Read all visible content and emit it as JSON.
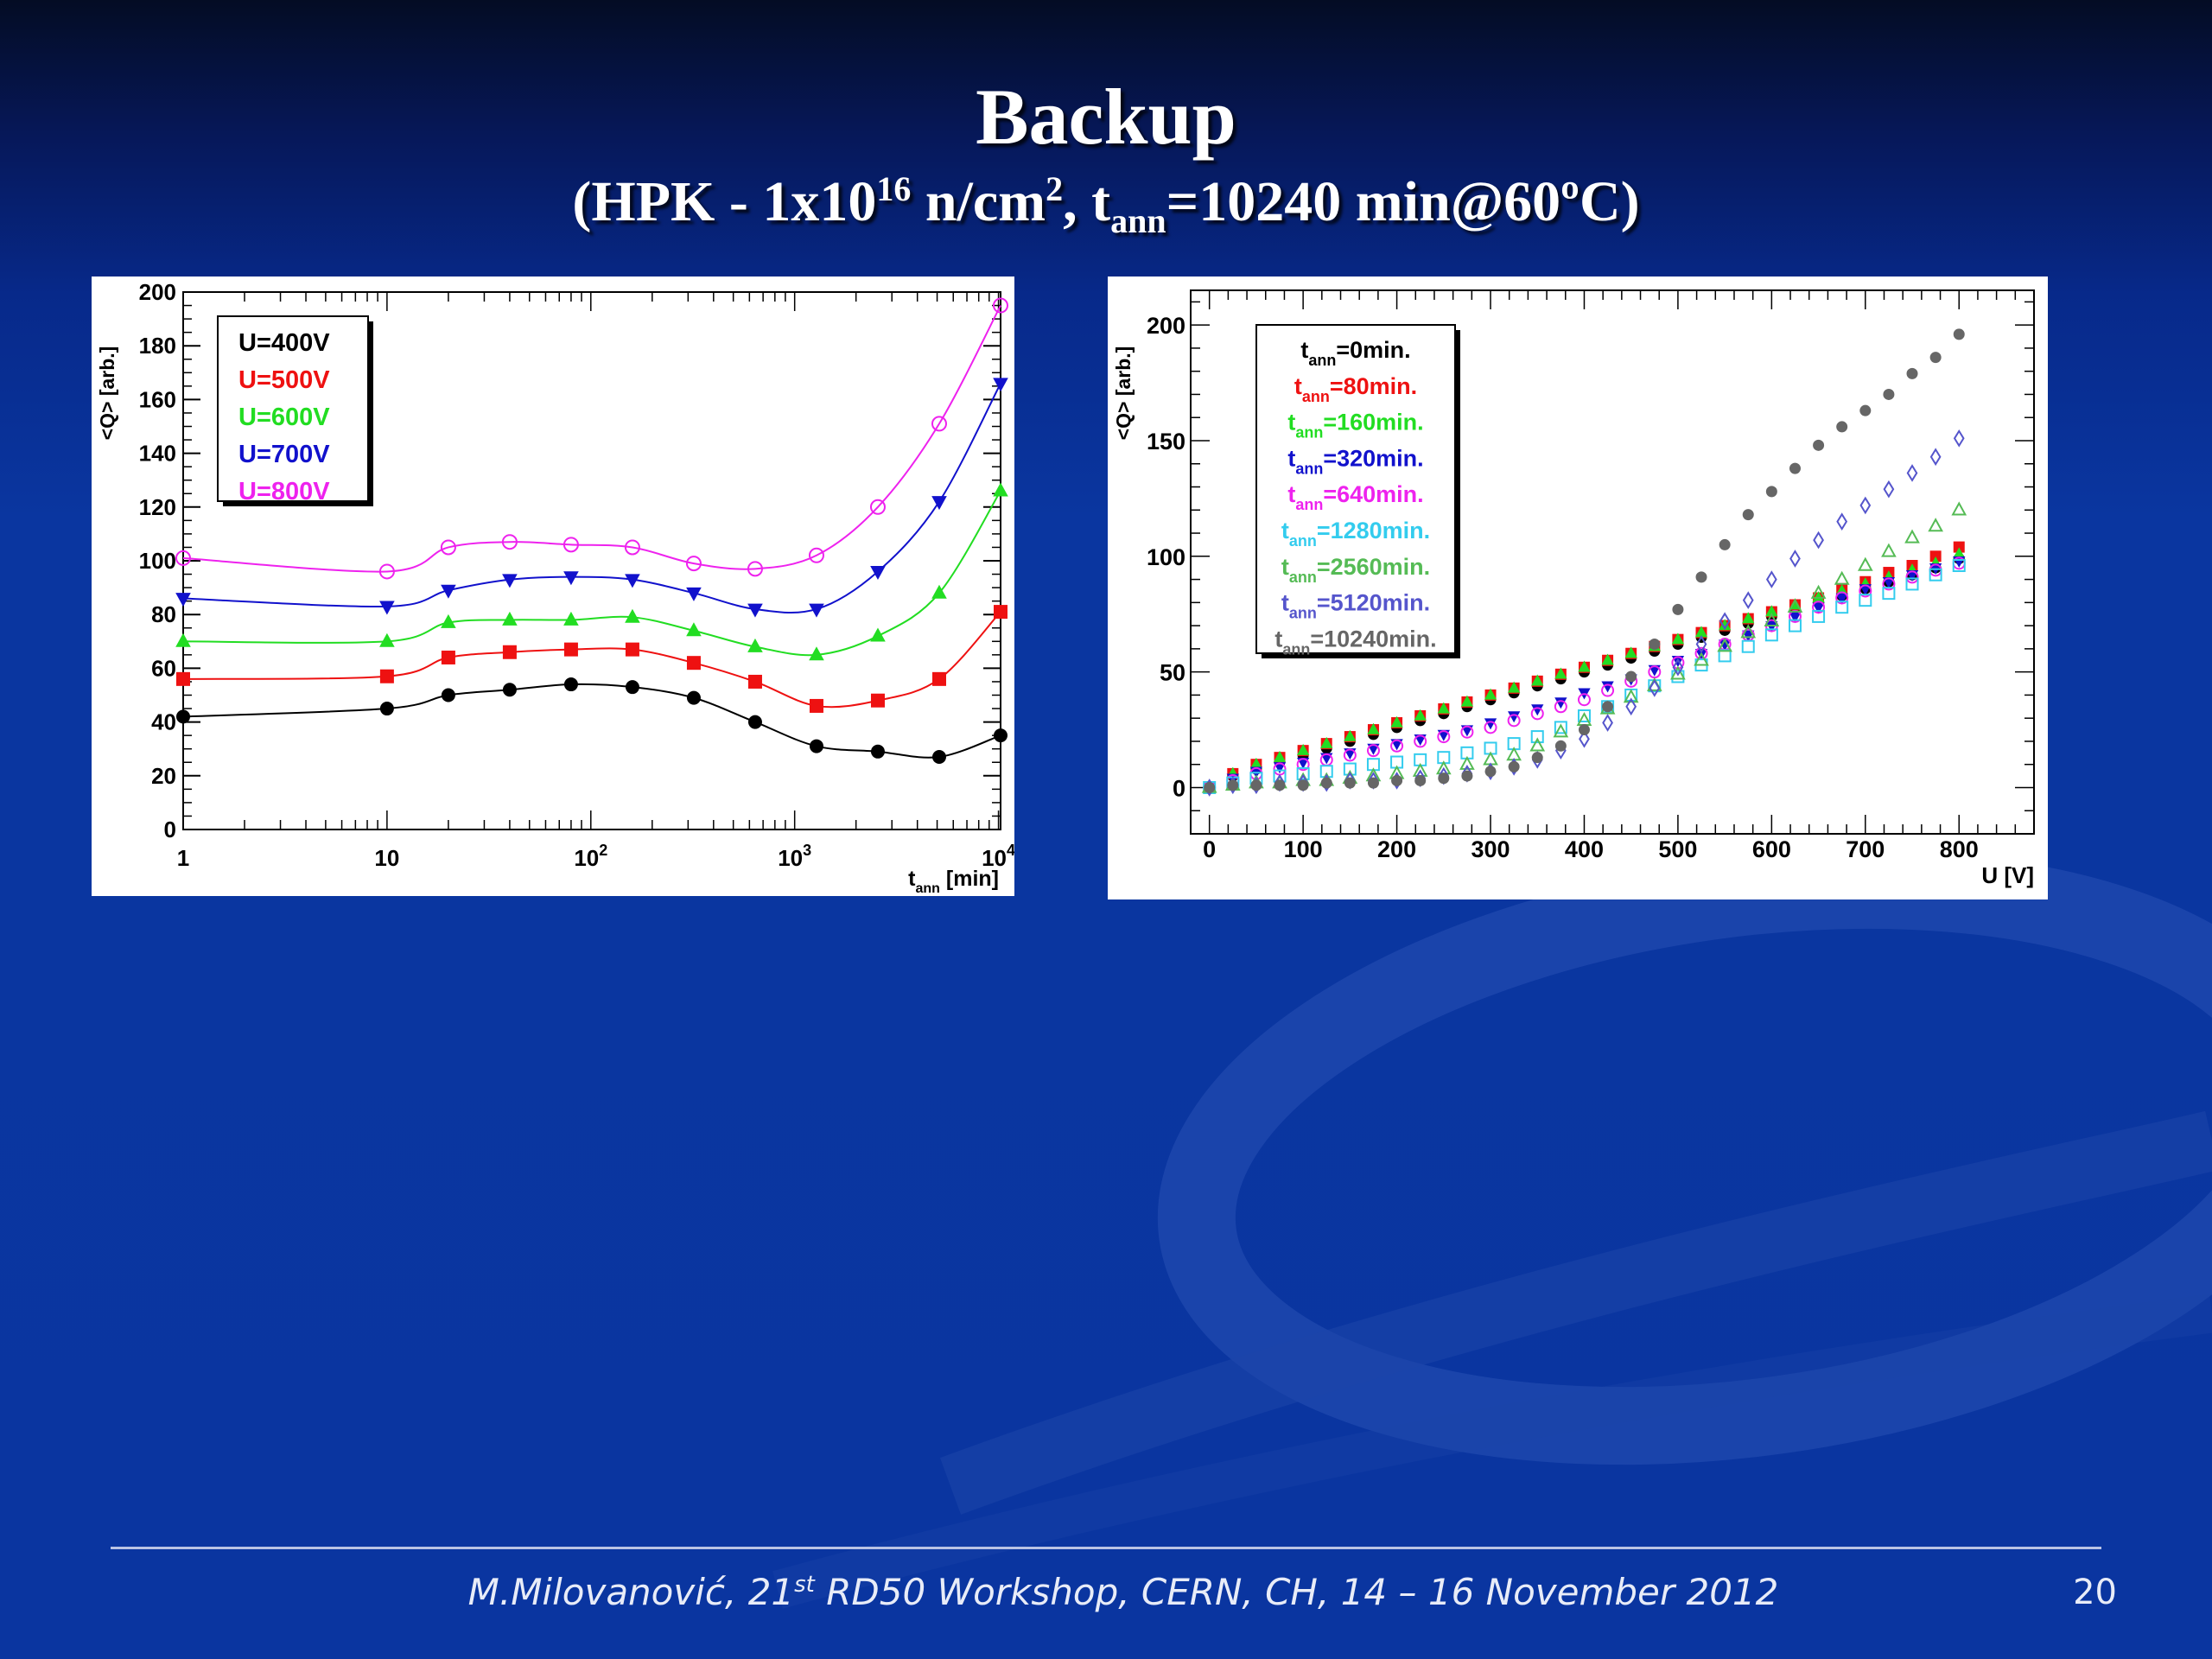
{
  "slide": {
    "title": "Backup",
    "subtitle": {
      "a": "(HPK - 1x10",
      "b": "16",
      "c": " n/cm",
      "d": "2",
      "e": ", t",
      "f": "ann",
      "g": "=10240 min@60ºC)"
    },
    "footer": {
      "a": "M.Milovanović, 21",
      "b": "st",
      "c": " RD50 Workshop, CERN, CH, 14 – 16 November 2012"
    },
    "page_number": "20"
  },
  "chart_data": [
    {
      "type": "line",
      "ylabel": "<Q> [arb.]",
      "xlabel": "t",
      "xlabel_sub": "ann",
      "xlabel_unit": " [min]",
      "xscale": "log",
      "xlim": [
        1,
        10240
      ],
      "ylim": [
        0,
        200
      ],
      "yticks": [
        "0",
        "20",
        "40",
        "60",
        "80",
        "100",
        "120",
        "140",
        "160",
        "180",
        "200"
      ],
      "xticks": [
        {
          "base": "1",
          "exp": ""
        },
        {
          "base": "10",
          "exp": ""
        },
        {
          "base": "10",
          "exp": "2"
        },
        {
          "base": "10",
          "exp": "3"
        },
        {
          "base": "10",
          "exp": "4"
        }
      ],
      "x": [
        1,
        10,
        20,
        40,
        80,
        160,
        320,
        640,
        1280,
        2560,
        5120,
        10240
      ],
      "legend_position": "top-left",
      "series": [
        {
          "name": "U=400V",
          "color": "#000000",
          "marker": "circle-filled",
          "values": [
            42,
            45,
            50,
            52,
            54,
            53,
            49,
            40,
            31,
            29,
            27,
            35
          ]
        },
        {
          "name": "U=500V",
          "color": "#ee1111",
          "marker": "square-filled",
          "values": [
            56,
            57,
            64,
            66,
            67,
            67,
            62,
            55,
            46,
            48,
            56,
            81
          ]
        },
        {
          "name": "U=600V",
          "color": "#22dd22",
          "marker": "triangle-up",
          "values": [
            70,
            70,
            77,
            78,
            78,
            79,
            74,
            68,
            65,
            72,
            88,
            126
          ]
        },
        {
          "name": "U=700V",
          "color": "#1111cc",
          "marker": "triangle-down",
          "values": [
            86,
            83,
            89,
            93,
            94,
            93,
            88,
            82,
            82,
            96,
            122,
            166
          ]
        },
        {
          "name": "U=800V",
          "color": "#ee22ee",
          "marker": "circle-open",
          "values": [
            101,
            96,
            105,
            107,
            106,
            105,
            99,
            97,
            102,
            120,
            151,
            195
          ]
        }
      ]
    },
    {
      "type": "scatter",
      "ylabel": "<Q> [arb.]",
      "xlabel": "U [V]",
      "xlim": [
        -20,
        880
      ],
      "ylim": [
        -20,
        215
      ],
      "xticks": [
        "0",
        "100",
        "200",
        "300",
        "400",
        "500",
        "600",
        "700",
        "800"
      ],
      "yticks": [
        "0",
        "50",
        "100",
        "150",
        "200"
      ],
      "x": [
        0,
        25,
        50,
        75,
        100,
        125,
        150,
        175,
        200,
        225,
        250,
        275,
        300,
        325,
        350,
        375,
        400,
        425,
        450,
        475,
        500,
        525,
        550,
        575,
        600,
        625,
        650,
        675,
        700,
        725,
        750,
        775,
        800
      ],
      "legend_position": "top-left",
      "series": [
        {
          "name": "=0min.",
          "color": "#000000",
          "marker": "circle-filled",
          "values": [
            0,
            5,
            8,
            11,
            14,
            17,
            20,
            23,
            26,
            29,
            32,
            35,
            38,
            41,
            44,
            47,
            50,
            53,
            56,
            59,
            62,
            65,
            68,
            71,
            74,
            77,
            80,
            83,
            86,
            89,
            92,
            95,
            99
          ]
        },
        {
          "name": "=80min.",
          "color": "#ee1111",
          "marker": "square-filled",
          "values": [
            0,
            6,
            10,
            13,
            16,
            19,
            22,
            25,
            28,
            31,
            34,
            37,
            40,
            43,
            46,
            49,
            52,
            55,
            58,
            61,
            64,
            67,
            70,
            73,
            76,
            79,
            82,
            86,
            89,
            93,
            96,
            100,
            104
          ]
        },
        {
          "name": "=160min.",
          "color": "#22dd22",
          "marker": "triangle-up",
          "values": [
            0,
            6,
            10,
            13,
            16,
            19,
            22,
            25,
            28,
            31,
            34,
            37,
            40,
            43,
            46,
            49,
            52,
            55,
            58,
            61,
            64,
            67,
            70,
            73,
            76,
            79,
            82,
            85,
            88,
            91,
            94,
            97,
            101
          ]
        },
        {
          "name": "=320min.",
          "color": "#1111cc",
          "marker": "triangle-down",
          "values": [
            0,
            4,
            7,
            9,
            11,
            13,
            15,
            17,
            19,
            21,
            23,
            25,
            28,
            31,
            34,
            37,
            41,
            44,
            47,
            51,
            55,
            58,
            62,
            66,
            70,
            74,
            78,
            82,
            86,
            89,
            92,
            95,
            98
          ]
        },
        {
          "name": "=640min.",
          "color": "#ee22ee",
          "marker": "circle-open",
          "values": [
            0,
            3,
            6,
            8,
            10,
            12,
            14,
            16,
            18,
            20,
            22,
            24,
            26,
            29,
            32,
            35,
            38,
            42,
            46,
            50,
            54,
            58,
            62,
            66,
            70,
            74,
            78,
            82,
            85,
            88,
            91,
            94,
            97
          ]
        },
        {
          "name": "=1280min.",
          "color": "#33ccee",
          "marker": "square-open",
          "values": [
            0,
            2,
            4,
            5,
            6,
            7,
            8,
            10,
            11,
            12,
            13,
            15,
            17,
            19,
            22,
            26,
            31,
            35,
            40,
            44,
            48,
            53,
            57,
            61,
            66,
            70,
            74,
            78,
            81,
            84,
            88,
            92,
            96
          ]
        },
        {
          "name": "=2560min.",
          "color": "#55bb55",
          "marker": "triangle-up-open",
          "values": [
            0,
            1,
            2,
            2,
            3,
            3,
            4,
            5,
            6,
            7,
            8,
            10,
            12,
            14,
            18,
            24,
            29,
            34,
            39,
            44,
            49,
            55,
            61,
            67,
            72,
            78,
            84,
            90,
            96,
            102,
            108,
            113,
            120
          ]
        },
        {
          "name": "=5120min.",
          "color": "#5555cc",
          "marker": "diamond-open",
          "values": [
            0,
            1,
            1,
            2,
            2,
            2,
            3,
            3,
            3,
            4,
            5,
            6,
            7,
            9,
            12,
            16,
            21,
            28,
            35,
            43,
            52,
            62,
            72,
            81,
            90,
            99,
            107,
            115,
            122,
            129,
            136,
            143,
            151
          ]
        },
        {
          "name": "=10240min.",
          "color": "#666666",
          "marker": "circle-filled",
          "values": [
            0,
            1,
            1,
            1,
            1,
            2,
            2,
            2,
            3,
            3,
            4,
            5,
            7,
            9,
            13,
            18,
            25,
            35,
            48,
            62,
            77,
            91,
            105,
            118,
            128,
            138,
            148,
            156,
            163,
            170,
            179,
            186,
            196
          ]
        }
      ]
    }
  ]
}
